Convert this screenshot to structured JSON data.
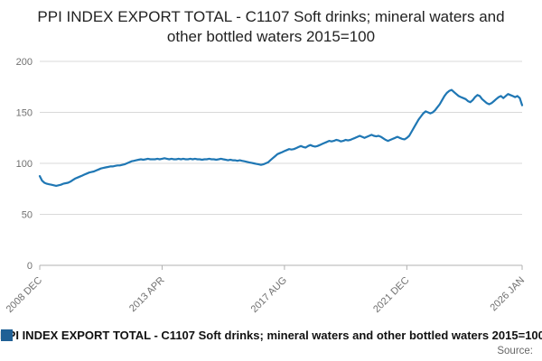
{
  "title": "PPI INDEX EXPORT TOTAL - C1107 Soft drinks; mineral waters and other bottled waters 2015=100",
  "legend": {
    "label": "PPI INDEX EXPORT TOTAL - C1107 Soft drinks; mineral waters and other bottled waters 2015=100",
    "swatch_color": "#206095"
  },
  "source_label": "Source:",
  "chart_data": {
    "type": "line",
    "title": "PPI INDEX EXPORT TOTAL - C1107 Soft drinks; mineral waters and other bottled waters 2015=100",
    "series_name": "PPI INDEX EXPORT TOTAL - C1107",
    "x_unit": "month",
    "x_start": "2008-12",
    "x_end": "2026-01",
    "ylim": [
      0,
      200
    ],
    "yticks": [
      0,
      50,
      100,
      150,
      200
    ],
    "xticks": [
      {
        "index": 0,
        "label": "2008 DEC"
      },
      {
        "index": 52,
        "label": "2013 APR"
      },
      {
        "index": 104,
        "label": "2017 AUG"
      },
      {
        "index": 156,
        "label": "2021 DEC"
      },
      {
        "index": 205,
        "label": "2026 JAN"
      }
    ],
    "line_color": "#1f77b4",
    "grid_color": "#d9d9d9",
    "axis_color": "#b0b0b0",
    "tick_label_color": "#707070",
    "grid": true,
    "legend_position": "bottom",
    "values": [
      87.5,
      83,
      81,
      80,
      79.5,
      79,
      78.5,
      78,
      78.5,
      79,
      80,
      80.5,
      81,
      82,
      83.5,
      85,
      86,
      87,
      88,
      89,
      90,
      91,
      91.5,
      92,
      93,
      94,
      95,
      95.5,
      96,
      96.5,
      97,
      97,
      97.5,
      98,
      98,
      98.5,
      99,
      100,
      101,
      102,
      102.5,
      103,
      103.5,
      104,
      103.5,
      104,
      104.5,
      104,
      104,
      104,
      104.5,
      104,
      104.5,
      105,
      104.5,
      104,
      104.5,
      104,
      104,
      104.5,
      104,
      104.5,
      104,
      104,
      104.5,
      104,
      104.5,
      104,
      104,
      103.5,
      104,
      104,
      104.5,
      104,
      104,
      103.5,
      104,
      104.5,
      104,
      103.5,
      103,
      103.5,
      103,
      103,
      102.5,
      103,
      102.5,
      102,
      101.5,
      101,
      100.5,
      100,
      99.5,
      99,
      98.5,
      99,
      100,
      101,
      103,
      105,
      107,
      109,
      110,
      111,
      112,
      113,
      114,
      113.5,
      114,
      115,
      116,
      117,
      116,
      115.5,
      117,
      118,
      117,
      116.5,
      117,
      118,
      119,
      120,
      121,
      122,
      121.5,
      122,
      123,
      122.5,
      121.5,
      122,
      123,
      122.5,
      123,
      124,
      125,
      126,
      127,
      126,
      125,
      126,
      127,
      128,
      127,
      126.5,
      127,
      126,
      124.5,
      123,
      122,
      123,
      124,
      125,
      126,
      125,
      124,
      123.5,
      125,
      127,
      131,
      135,
      139,
      143,
      146,
      149,
      151,
      150,
      149,
      150,
      152,
      155,
      158,
      162,
      166,
      169,
      171,
      172,
      170,
      168,
      166,
      165,
      164,
      163,
      161,
      160,
      162,
      165,
      167,
      166,
      163,
      161,
      159,
      158,
      159,
      161,
      163,
      165,
      166,
      164,
      166,
      168,
      167,
      166,
      165,
      166,
      164,
      157
    ]
  }
}
